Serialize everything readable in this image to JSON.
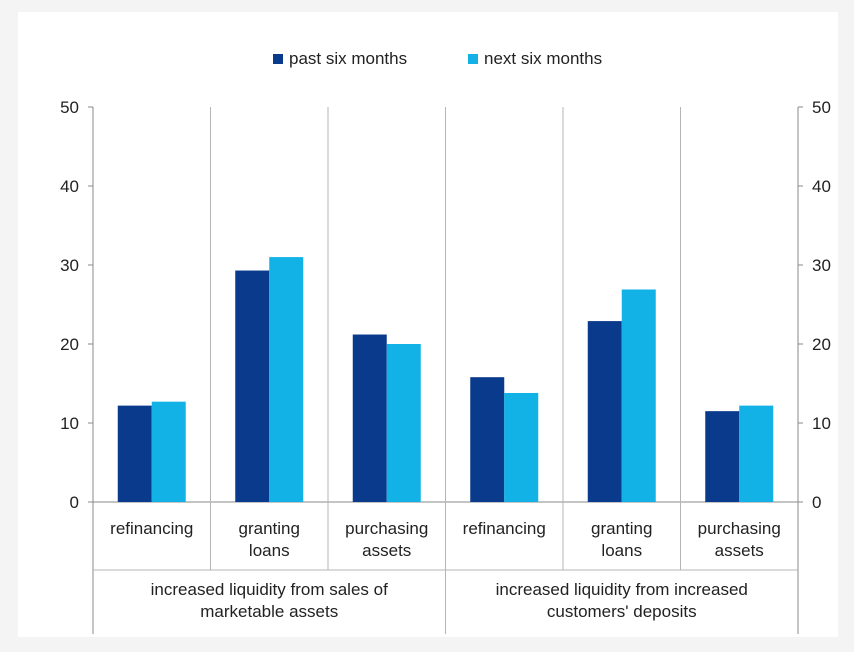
{
  "chart_data": {
    "type": "bar",
    "title": "",
    "xlabel": "",
    "ylabel": "",
    "ylim": [
      0,
      50
    ],
    "yticks": [
      "0",
      "10",
      "20",
      "30",
      "40",
      "50"
    ],
    "grid": "vertical separators between categories",
    "legend_position": "top-center",
    "groups": [
      {
        "label_lines": [
          "increased liquidity from sales of",
          "marketable assets"
        ],
        "categories": [
          {
            "lines": [
              "refinancing"
            ]
          },
          {
            "lines": [
              "granting",
              "loans"
            ]
          },
          {
            "lines": [
              "purchasing",
              "assets"
            ]
          }
        ]
      },
      {
        "label_lines": [
          "increased liquidity from increased",
          "customers' deposits"
        ],
        "categories": [
          {
            "lines": [
              "refinancing"
            ]
          },
          {
            "lines": [
              "granting",
              "loans"
            ]
          },
          {
            "lines": [
              "purchasing",
              "assets"
            ]
          }
        ]
      }
    ],
    "series": [
      {
        "name": "past six months",
        "color": "#0a3a8c",
        "values": [
          12.2,
          29.3,
          21.2,
          15.8,
          22.9,
          11.5
        ]
      },
      {
        "name": "next six months",
        "color": "#12b2e6",
        "values": [
          12.7,
          31.0,
          20.0,
          13.8,
          26.9,
          12.2
        ]
      }
    ]
  }
}
